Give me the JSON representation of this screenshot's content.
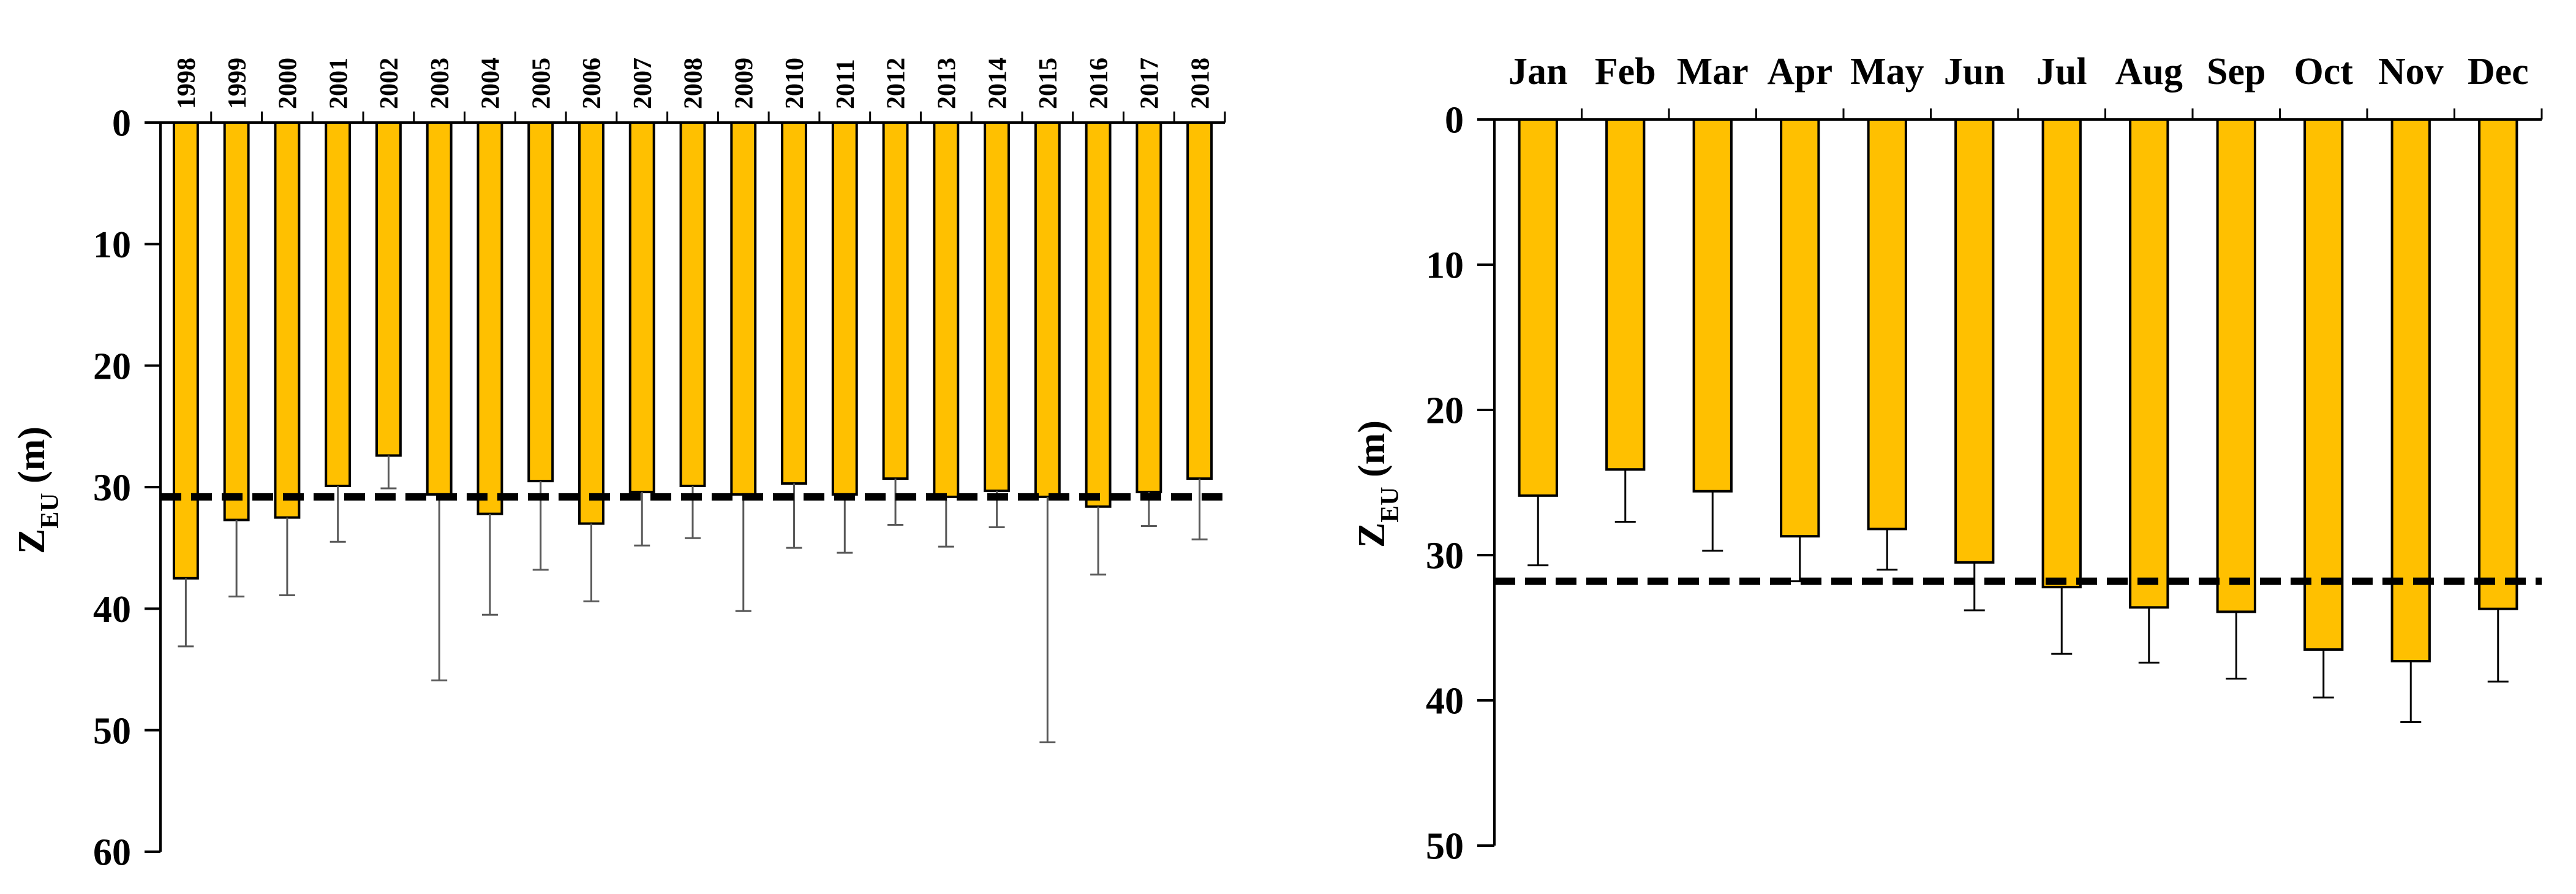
{
  "chart_data": [
    {
      "type": "bar",
      "categories": [
        "1998",
        "1999",
        "2000",
        "2001",
        "2002",
        "2003",
        "2004",
        "2005",
        "2006",
        "2007",
        "2008",
        "2009",
        "2010",
        "2011",
        "2012",
        "2013",
        "2014",
        "2015",
        "2016",
        "2017",
        "2018"
      ],
      "values": [
        37.5,
        32.7,
        32.5,
        29.9,
        27.4,
        30.6,
        32.2,
        29.5,
        33.0,
        30.4,
        29.9,
        30.6,
        29.7,
        30.6,
        29.3,
        30.8,
        30.3,
        30.8,
        31.6,
        30.4,
        29.3
      ],
      "errors": [
        5.6,
        6.3,
        6.4,
        4.6,
        2.7,
        15.3,
        8.3,
        7.3,
        6.4,
        4.4,
        4.3,
        9.6,
        5.3,
        4.8,
        3.8,
        4.1,
        3.0,
        20.2,
        5.6,
        2.8,
        5.0
      ],
      "reference_line": 30.8,
      "ylim": [
        0,
        60
      ],
      "yticks": [
        0,
        10,
        20,
        30,
        40,
        50,
        60
      ],
      "y_inverted": true,
      "x_axis_position": "top",
      "ylabel": {
        "main": "Z",
        "sub": "EU",
        "rest": " (m)"
      },
      "grid": false,
      "colors": {
        "bar": "#FFC000",
        "bar_edge": "#000000",
        "error": "#595959",
        "reference": "#000000"
      }
    },
    {
      "type": "bar",
      "categories": [
        "Jan",
        "Feb",
        "Mar",
        "Apr",
        "May",
        "Jun",
        "Jul",
        "Aug",
        "Sep",
        "Oct",
        "Nov",
        "Dec"
      ],
      "values": [
        25.9,
        24.1,
        25.6,
        28.7,
        28.2,
        30.5,
        32.2,
        33.6,
        33.9,
        36.5,
        37.3,
        33.7
      ],
      "errors": [
        4.8,
        3.6,
        4.1,
        3.1,
        2.8,
        3.3,
        4.6,
        3.8,
        4.6,
        3.3,
        4.2,
        5.0
      ],
      "reference_line": 31.8,
      "ylim": [
        0,
        50
      ],
      "yticks": [
        0,
        10,
        20,
        30,
        40,
        50
      ],
      "y_inverted": true,
      "x_axis_position": "top",
      "ylabel": {
        "main": "Z",
        "sub": "EU",
        "rest": " (m)"
      },
      "grid": false,
      "colors": {
        "bar": "#FFC000",
        "bar_edge": "#000000",
        "error": "#000000",
        "reference": "#000000"
      }
    }
  ]
}
